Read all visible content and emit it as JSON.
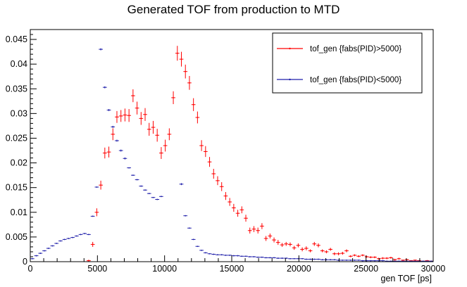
{
  "chart_data": {
    "type": "scatter",
    "title": "Generated TOF from production to MTD",
    "xlabel": "gen TOF [ps]",
    "ylabel": "",
    "xlim": [
      0,
      30000
    ],
    "ylim": [
      0,
      0.047
    ],
    "x_ticks": [
      0,
      5000,
      10000,
      15000,
      20000,
      25000,
      30000
    ],
    "y_ticks": [
      0,
      0.005,
      0.01,
      0.015,
      0.02,
      0.025,
      0.03,
      0.035,
      0.04,
      0.045
    ],
    "x_tick_labels": [
      "0",
      "5000",
      "10000",
      "15000",
      "20000",
      "25000",
      "30000"
    ],
    "y_tick_labels": [
      "0",
      "0.005",
      "0.01",
      "0.015",
      "0.02",
      "0.025",
      "0.03",
      "0.035",
      "0.04",
      "0.045"
    ],
    "grid": false,
    "legend": "top-right",
    "bin_width": 300,
    "series": [
      {
        "name": "tof_gen {fabs(PID)>5000}",
        "color": "#ff0000",
        "x": [
          4350,
          4650,
          4950,
          5250,
          5550,
          5850,
          6150,
          6450,
          6750,
          7050,
          7350,
          7650,
          7950,
          8250,
          8550,
          8850,
          9150,
          9450,
          9750,
          10050,
          10350,
          10650,
          10950,
          11250,
          11550,
          11850,
          12150,
          12450,
          12750,
          13050,
          13350,
          13650,
          13950,
          14250,
          14550,
          14850,
          15150,
          15450,
          15750,
          16050,
          16350,
          16650,
          16950,
          17250,
          17550,
          17850,
          18150,
          18450,
          18750,
          19050,
          19350,
          19650,
          19950,
          20250,
          20550,
          20850,
          21150,
          21450,
          21750,
          22050,
          22350,
          22650,
          22950,
          23250,
          23550,
          23850,
          24150,
          24450,
          24750,
          25050,
          25350,
          25650,
          25950,
          26250,
          26550,
          26850,
          27150,
          27450,
          27750,
          28050,
          28350,
          28650,
          28950,
          29250,
          29550,
          29850
        ],
        "y": [
          0.0002,
          0.0035,
          0.01,
          0.0155,
          0.022,
          0.0222,
          0.0258,
          0.0293,
          0.0295,
          0.0297,
          0.0296,
          0.0336,
          0.0311,
          0.029,
          0.0298,
          0.0268,
          0.0272,
          0.0256,
          0.022,
          0.0235,
          0.0258,
          0.0332,
          0.0422,
          0.041,
          0.0385,
          0.0362,
          0.0318,
          0.0292,
          0.0235,
          0.0223,
          0.0202,
          0.0178,
          0.0164,
          0.0152,
          0.0133,
          0.0121,
          0.0109,
          0.0098,
          0.0105,
          0.0088,
          0.0063,
          0.0066,
          0.0063,
          0.0072,
          0.0047,
          0.0052,
          0.0044,
          0.0039,
          0.0034,
          0.0036,
          0.0035,
          0.0028,
          0.0033,
          0.0025,
          0.0027,
          0.0022,
          0.0036,
          0.0033,
          0.0022,
          0.002,
          0.0025,
          0.0016,
          0.0016,
          0.0017,
          0.0022,
          0.0011,
          0.0013,
          0.0011,
          0.0013,
          0.001,
          0.0009,
          0.0009,
          0.0006,
          0.0007,
          0.0007,
          0.0008,
          0.0004,
          0.0006,
          0.0003,
          0.0004,
          0.0002,
          0.0003,
          0.0002,
          0.0001,
          0.0002,
          0.0001
        ],
        "err": [
          0.0002,
          0.0005,
          0.0008,
          0.0009,
          0.0011,
          0.0011,
          0.0012,
          0.0012,
          0.0012,
          0.0013,
          0.0013,
          0.0013,
          0.0013,
          0.0013,
          0.0013,
          0.0013,
          0.0013,
          0.0013,
          0.0012,
          0.0012,
          0.0012,
          0.0013,
          0.0015,
          0.0015,
          0.0014,
          0.0014,
          0.0013,
          0.0012,
          0.0011,
          0.0011,
          0.001,
          0.001,
          0.0009,
          0.0009,
          0.0008,
          0.0008,
          0.0008,
          0.0007,
          0.0007,
          0.0007,
          0.0006,
          0.0006,
          0.0006,
          0.0006,
          0.0005,
          0.0005,
          0.0005,
          0.0005,
          0.0004,
          0.0004,
          0.0004,
          0.0004,
          0.0004,
          0.0004,
          0.0004,
          0.0003,
          0.0004,
          0.0004,
          0.0003,
          0.0003,
          0.0003,
          0.0003,
          0.0003,
          0.0003,
          0.0003,
          0.0002,
          0.0002,
          0.0002,
          0.0002,
          0.0002,
          0.0002,
          0.0002,
          0.0002,
          0.0002,
          0.0002,
          0.0002,
          0.0002,
          0.0002,
          0.0001,
          0.0001,
          0.0001,
          0.0001,
          0.0001,
          0.0001,
          0.0001,
          0.0001
        ]
      },
      {
        "name": "tof_gen {fabs(PID)<5000}",
        "color": "#1f1faa",
        "x": [
          150,
          450,
          750,
          1050,
          1350,
          1650,
          1950,
          2250,
          2550,
          2850,
          3150,
          3450,
          3750,
          4050,
          4350,
          4650,
          4950,
          5250,
          5550,
          5850,
          6150,
          6450,
          6750,
          7050,
          7350,
          7650,
          7950,
          8250,
          8550,
          8850,
          9150,
          9450,
          9750,
          10050,
          10350,
          10650,
          10950,
          11250,
          11550,
          11850,
          12150,
          12450,
          12750,
          13050,
          13350,
          13650,
          13950,
          14250,
          14550,
          14850,
          15150,
          15450,
          15750,
          16050,
          16350,
          16650,
          16950,
          17250,
          17550,
          17850,
          18150,
          18450,
          18750,
          19050,
          19350,
          19650,
          19950,
          20250,
          20550,
          20850,
          21150,
          21450,
          21750,
          22050,
          22350,
          22650,
          22950,
          23250,
          23550,
          23850,
          24150,
          24450,
          24750,
          25050,
          25350,
          25650,
          25950,
          26250,
          26550,
          26850,
          27150,
          27450,
          27750,
          28050,
          28350,
          28650,
          28950,
          29250,
          29550,
          29850
        ],
        "y": [
          0.0006,
          0.0012,
          0.0017,
          0.0022,
          0.0027,
          0.0032,
          0.0037,
          0.0042,
          0.0045,
          0.0047,
          0.0049,
          0.0052,
          0.0055,
          0.0057,
          0.0055,
          0.0092,
          0.0151,
          0.043,
          0.0353,
          0.0307,
          0.0273,
          0.0245,
          0.0225,
          0.0209,
          0.019,
          0.0175,
          0.0166,
          0.0153,
          0.0145,
          0.0138,
          0.013,
          0.0126,
          0.0132,
          0.0,
          0.0,
          0.0,
          0.0,
          0.0157,
          0.0093,
          0.0068,
          0.0045,
          0.0031,
          0.0023,
          0.0018,
          0.0016,
          0.0015,
          0.0014,
          0.0014,
          0.0013,
          0.0013,
          0.0012,
          0.0012,
          0.0011,
          0.0011,
          0.001,
          0.001,
          0.0009,
          0.0009,
          0.0008,
          0.0008,
          0.0008,
          0.0007,
          0.0007,
          0.0007,
          0.0006,
          0.0006,
          0.0006,
          0.0006,
          0.0005,
          0.0005,
          0.0005,
          0.0005,
          0.0004,
          0.0004,
          0.0004,
          0.0004,
          0.0003,
          0.0003,
          0.0003,
          0.0003,
          0.0003,
          0.0003,
          0.0002,
          0.0002,
          0.0002,
          0.0002,
          0.0002,
          0.0002,
          0.0001,
          0.0001,
          0.0001,
          0.0001,
          0.0001,
          0.0001,
          0.0001,
          0.0001,
          0.0001,
          0.0001,
          0.0001,
          0.0001
        ],
        "err": [
          0.0001,
          0.0001,
          0.0001,
          0.0001,
          0.0001,
          0.0001,
          0.0001,
          0.0001,
          0.0001,
          0.0001,
          0.0001,
          0.0001,
          0.0001,
          0.0001,
          0.0001,
          0.0001,
          0.0001,
          0.0002,
          0.0002,
          0.0002,
          0.0002,
          0.0002,
          0.0002,
          0.0002,
          0.0001,
          0.0001,
          0.0001,
          0.0001,
          0.0001,
          0.0001,
          0.0001,
          0.0001,
          0.0001,
          0.0,
          0.0,
          0.0,
          0.0,
          0.0002,
          0.0001,
          0.0001,
          0.0001,
          0.0001,
          0.0001,
          0.0001,
          0.0001,
          0.0001,
          0.0001,
          0.0001,
          0.0001,
          0.0001,
          0.0001,
          0.0001,
          0.0001,
          0.0001,
          0.0001,
          0.0001,
          0.0001,
          0.0001,
          0.0001,
          0.0001,
          0.0001,
          0.0001,
          0.0001,
          0.0001,
          0.0001,
          0.0001,
          0.0001,
          0.0001,
          0.0001,
          0.0001,
          0.0001,
          0.0001,
          0.0001,
          0.0001,
          0.0001,
          0.0001,
          0.0001,
          0.0001,
          0.0001,
          0.0001,
          0.0001,
          0.0001,
          0.0001,
          0.0001,
          0.0001,
          0.0001,
          0.0001,
          0.0001,
          0.0001,
          0.0001,
          0.0001,
          0.0001,
          0.0001,
          0.0001,
          0.0001,
          0.0001,
          0.0001,
          0.0001,
          0.0001,
          0.0001
        ]
      }
    ]
  }
}
